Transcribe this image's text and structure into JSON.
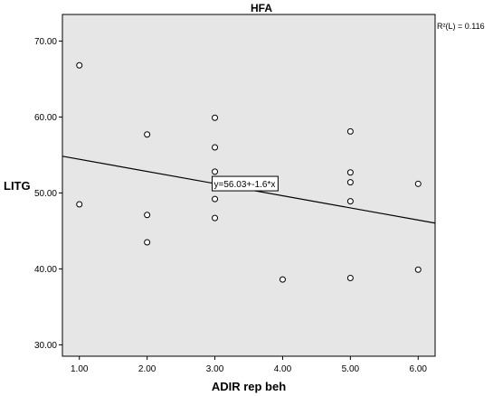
{
  "chart_data": {
    "type": "scatter",
    "title": "HFA",
    "xlabel": "ADIR rep beh",
    "ylabel": "LITG",
    "xlim": [
      0.75,
      6.25
    ],
    "ylim": [
      28.5,
      73.5
    ],
    "xticks": [
      1.0,
      2.0,
      3.0,
      4.0,
      5.0,
      6.0
    ],
    "xtick_labels": [
      "1.00",
      "2.00",
      "3.00",
      "4.00",
      "5.00",
      "6.00"
    ],
    "yticks": [
      30,
      40,
      50,
      60,
      70
    ],
    "ytick_labels": [
      "30.00",
      "40.00",
      "50.00",
      "60.00",
      "70.00"
    ],
    "points": [
      {
        "x": 1.0,
        "y": 66.8
      },
      {
        "x": 1.0,
        "y": 48.5
      },
      {
        "x": 2.0,
        "y": 57.7
      },
      {
        "x": 2.0,
        "y": 47.1
      },
      {
        "x": 2.0,
        "y": 43.5
      },
      {
        "x": 3.0,
        "y": 59.9
      },
      {
        "x": 3.0,
        "y": 56.0
      },
      {
        "x": 3.0,
        "y": 52.8
      },
      {
        "x": 3.0,
        "y": 51.0
      },
      {
        "x": 3.0,
        "y": 49.2
      },
      {
        "x": 3.0,
        "y": 46.7
      },
      {
        "x": 4.0,
        "y": 38.6
      },
      {
        "x": 5.0,
        "y": 58.1
      },
      {
        "x": 5.0,
        "y": 52.7
      },
      {
        "x": 5.0,
        "y": 51.4
      },
      {
        "x": 5.0,
        "y": 48.9
      },
      {
        "x": 5.0,
        "y": 38.8
      },
      {
        "x": 6.0,
        "y": 51.2
      },
      {
        "x": 6.0,
        "y": 39.9
      }
    ],
    "fit_line": {
      "intercept": 56.03,
      "slope": -1.6,
      "label": "y=56.03+-1.6*x",
      "label_x": 3.0
    },
    "r2_label": "R²(L) = 0.116",
    "grid": false,
    "colors": {
      "plot_background": "#e6e6e6",
      "marker_edge": "#000000",
      "marker_fill": "#ffffff",
      "line": "#000000"
    }
  }
}
